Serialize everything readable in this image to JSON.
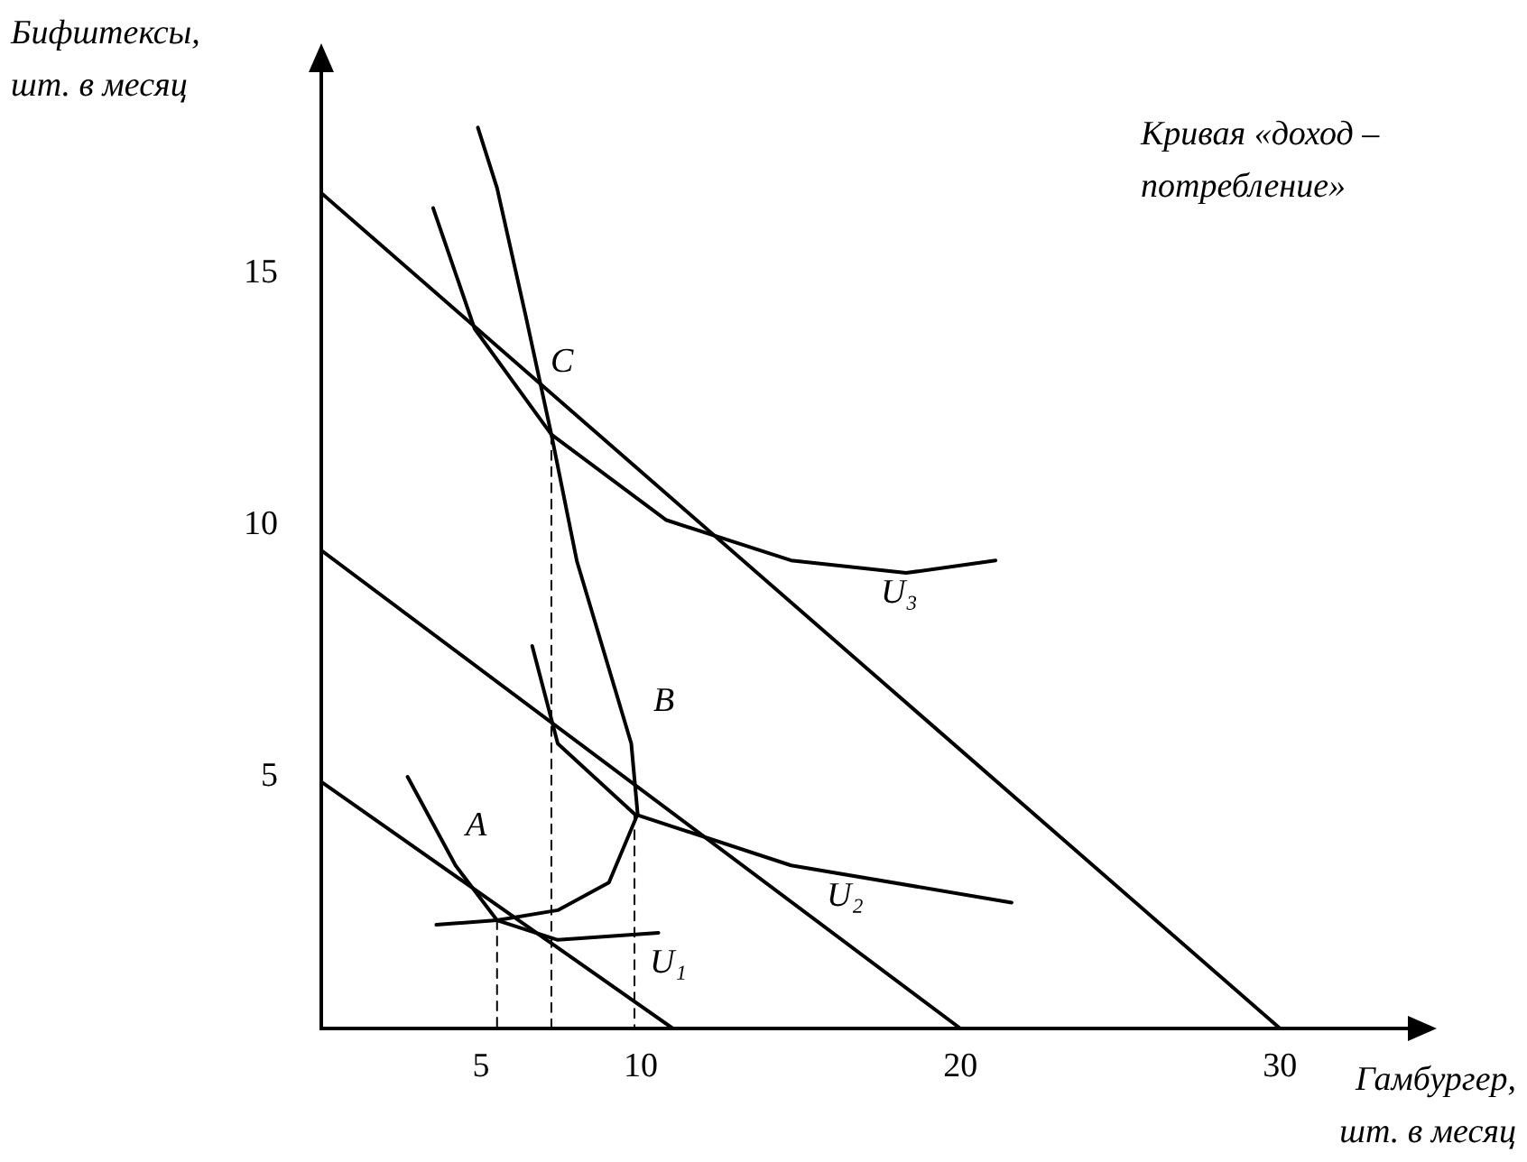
{
  "chart_data": {
    "type": "line",
    "xlabel": "Гамбургер, шт. в месяц",
    "ylabel": "Бифштексы, шт. в месяц",
    "xlim": [
      0,
      34
    ],
    "ylim": [
      0,
      19
    ],
    "xticks": [
      5,
      10,
      20,
      30
    ],
    "yticks": [
      5,
      10,
      15
    ],
    "grid": false,
    "legend": false,
    "marker": "none",
    "series": [
      {
        "color": "#000000",
        "x": [
          0,
          11
        ],
        "values": [
          4.9,
          0
        ]
      },
      {
        "color": "#000000",
        "x": [
          0,
          20
        ],
        "values": [
          9.5,
          0
        ]
      },
      {
        "color": "#000000",
        "x": [
          0,
          30
        ],
        "values": [
          16.6,
          0
        ]
      },
      {
        "color": "#000000",
        "x": [
          3.6,
          5.5,
          7.4,
          9.0,
          9.9,
          9.7,
          8.0,
          7.2,
          6.4,
          5.5,
          4.9
        ],
        "values": [
          2.06,
          2.15,
          2.35,
          2.9,
          4.26,
          5.66,
          9.28,
          11.8,
          14.15,
          16.7,
          17.9
        ]
      },
      {
        "color": "#000000",
        "x": [
          2.7,
          4.2,
          5.5,
          7.4,
          10.55
        ],
        "values": [
          5.0,
          3.24,
          2.15,
          1.76,
          1.9
        ]
      },
      {
        "color": "#000000",
        "x": [
          6.6,
          7.4,
          9.8,
          14.7,
          21.6
        ],
        "values": [
          7.6,
          5.66,
          4.26,
          3.24,
          2.5
        ]
      },
      {
        "color": "#000000",
        "x": [
          3.5,
          4.8,
          7.2,
          10.8,
          14.7,
          18.3,
          21.1
        ],
        "values": [
          16.3,
          13.9,
          11.8,
          10.1,
          9.3,
          9.05,
          9.3
        ]
      },
      {
        "color": "#000000",
        "line_style": "dashed",
        "x": [
          5.5,
          5.5
        ],
        "values": [
          2.15,
          0
        ]
      },
      {
        "color": "#000000",
        "line_style": "dashed",
        "x": [
          7.2,
          7.2
        ],
        "values": [
          11.8,
          0
        ]
      },
      {
        "color": "#000000",
        "line_style": "dashed",
        "x": [
          9.8,
          9.8
        ],
        "values": [
          4.26,
          0
        ]
      }
    ],
    "annotations": [
      "Кривая «доход – потребление»",
      "A",
      "B",
      "C",
      "U₃",
      "U₂",
      "U₁"
    ]
  }
}
